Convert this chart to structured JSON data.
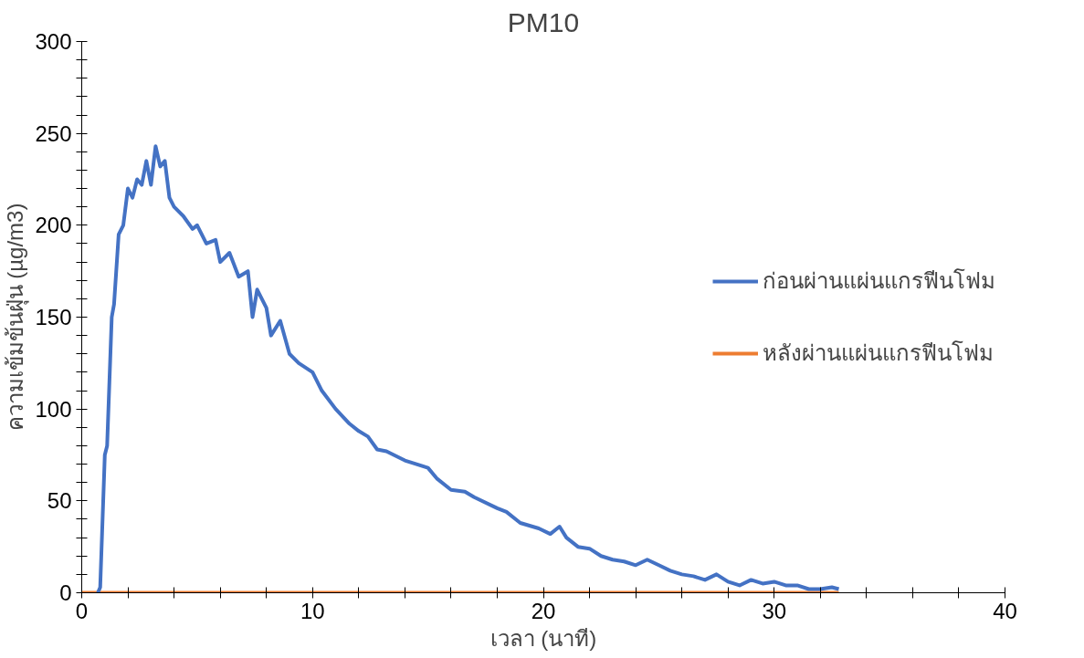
{
  "chart_data": {
    "type": "line",
    "title": "PM10",
    "xlabel": "เวลา (นาที)",
    "ylabel": "ความเข้มข้นฝุ่น (µg/m3)",
    "xlim": [
      0,
      40
    ],
    "ylim": [
      0,
      300
    ],
    "xticks": [
      0,
      {
        "value": 2,
        "label": null
      },
      {
        "value": 4,
        "label": null
      },
      {
        "value": 6,
        "label": null
      },
      {
        "value": 8,
        "label": null
      },
      10,
      {
        "value": 12,
        "label": null
      },
      {
        "value": 14,
        "label": null
      },
      {
        "value": 16,
        "label": null
      },
      {
        "value": 18,
        "label": null
      },
      20,
      {
        "value": 22,
        "label": null
      },
      {
        "value": 24,
        "label": null
      },
      {
        "value": 26,
        "label": null
      },
      {
        "value": 28,
        "label": null
      },
      30,
      {
        "value": 32,
        "label": null
      },
      {
        "value": 34,
        "label": null
      },
      {
        "value": 36,
        "label": null
      },
      {
        "value": 38,
        "label": null
      },
      40
    ],
    "yticks": [
      0,
      {
        "value": 10,
        "label": null
      },
      {
        "value": 20,
        "label": null
      },
      {
        "value": 30,
        "label": null
      },
      {
        "value": 40,
        "label": null
      },
      50,
      {
        "value": 60,
        "label": null
      },
      {
        "value": 70,
        "label": null
      },
      {
        "value": 80,
        "label": null
      },
      {
        "value": 90,
        "label": null
      },
      100,
      {
        "value": 110,
        "label": null
      },
      {
        "value": 120,
        "label": null
      },
      {
        "value": 130,
        "label": null
      },
      {
        "value": 140,
        "label": null
      },
      150,
      {
        "value": 160,
        "label": null
      },
      {
        "value": 170,
        "label": null
      },
      {
        "value": 180,
        "label": null
      },
      {
        "value": 190,
        "label": null
      },
      200,
      {
        "value": 210,
        "label": null
      },
      {
        "value": 220,
        "label": null
      },
      {
        "value": 230,
        "label": null
      },
      {
        "value": 240,
        "label": null
      },
      250,
      {
        "value": 260,
        "label": null
      },
      {
        "value": 270,
        "label": null
      },
      {
        "value": 280,
        "label": null
      },
      {
        "value": 290,
        "label": null
      },
      300
    ],
    "grid": false,
    "legend": "right",
    "series": [
      {
        "name": "ก่อนผ่านแผ่นแกรฟีนโฟม",
        "color": "#4472c4",
        "x": [
          0.7,
          0.8,
          1.0,
          1.1,
          1.3,
          1.4,
          1.6,
          1.8,
          2.0,
          2.2,
          2.4,
          2.6,
          2.8,
          3.0,
          3.2,
          3.4,
          3.6,
          3.8,
          4.0,
          4.4,
          4.8,
          5.0,
          5.4,
          5.8,
          6.0,
          6.4,
          6.8,
          7.2,
          7.4,
          7.6,
          8.0,
          8.2,
          8.6,
          9.0,
          9.4,
          10,
          10.4,
          11,
          11.6,
          12,
          12.4,
          12.8,
          13.2,
          14,
          15,
          15.4,
          16,
          16.6,
          17,
          18,
          18.4,
          19,
          19.8,
          20.3,
          20.7,
          21,
          21.5,
          22,
          22.5,
          23,
          23.5,
          24,
          24.5,
          25,
          25.5,
          26,
          26.5,
          27,
          27.5,
          28,
          28.5,
          29,
          29.5,
          30,
          30.5,
          31,
          31.5,
          32,
          32.5,
          32.8
        ],
        "values": [
          0,
          3,
          75,
          80,
          150,
          157,
          195,
          200,
          220,
          215,
          225,
          222,
          235,
          222,
          243,
          232,
          235,
          215,
          210,
          205,
          198,
          200,
          190,
          192,
          180,
          185,
          172,
          175,
          150,
          165,
          155,
          140,
          148,
          130,
          125,
          120,
          110,
          100,
          92,
          88,
          85,
          78,
          77,
          72,
          68,
          62,
          56,
          55,
          52,
          46,
          44,
          38,
          35,
          32,
          36,
          30,
          25,
          24,
          20,
          18,
          17,
          15,
          18,
          15,
          12,
          10,
          9,
          7,
          10,
          6,
          4,
          7,
          5,
          6,
          4,
          4,
          2,
          2,
          3,
          2
        ]
      },
      {
        "name": "หลังผ่านแผ่นแกรฟีนโฟม",
        "color": "#ed7d31",
        "x": [
          0,
          10,
          20,
          30,
          32.8
        ],
        "values": [
          0,
          0,
          0,
          0,
          0
        ]
      }
    ]
  }
}
